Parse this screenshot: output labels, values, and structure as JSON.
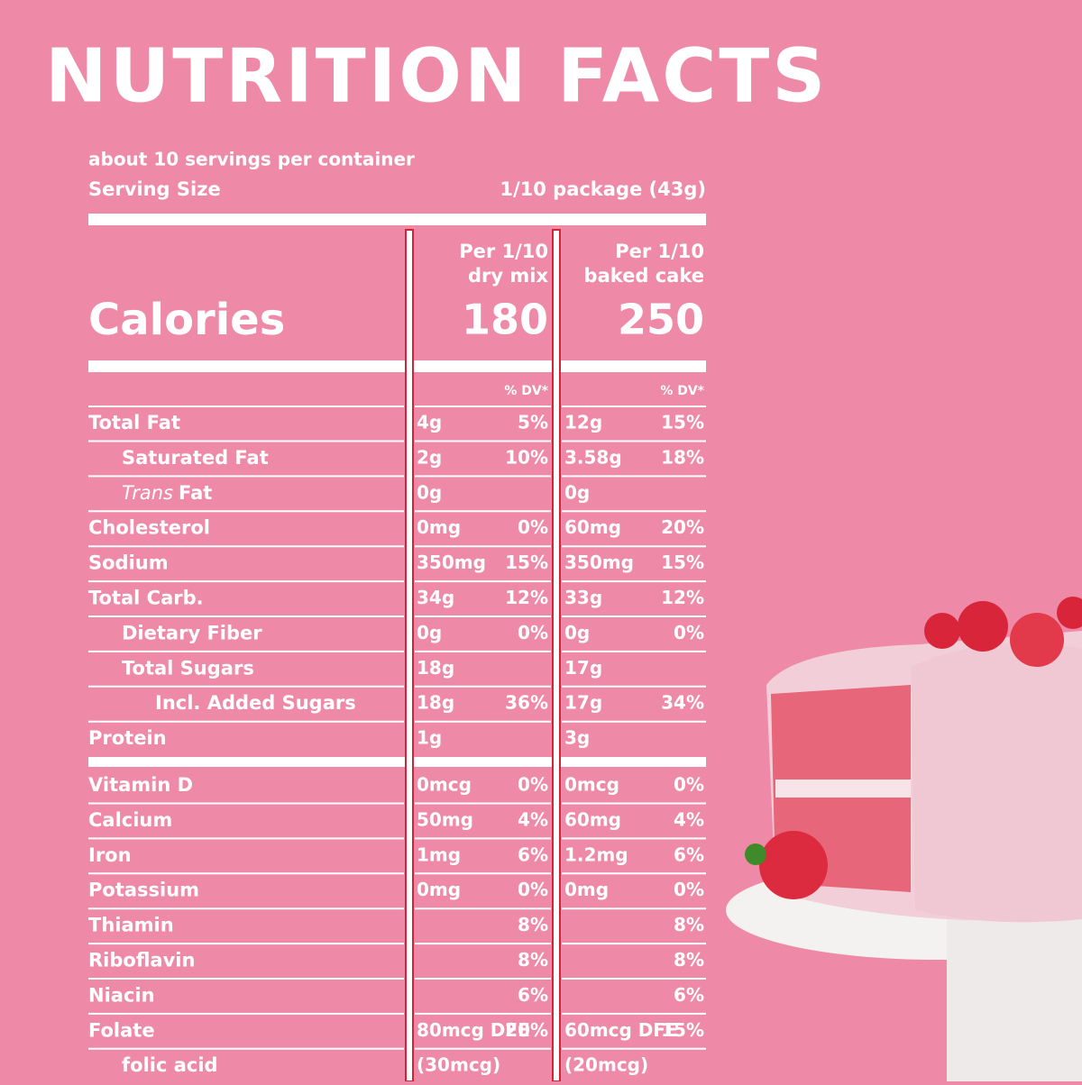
{
  "header": {
    "title": "NUTRITION FACTS",
    "servings": "about 10 servings per container",
    "serving_size_label": "Serving Size",
    "serving_size": "1/10 package (43g)"
  },
  "calories_label": "Calories",
  "columns": [
    {
      "heading": [
        "Per 1/10",
        "dry mix"
      ],
      "calories": "180",
      "dv_heading": "% DV*"
    },
    {
      "heading": [
        "Per 1/10",
        "baked cake"
      ],
      "calories": "250",
      "dv_heading": "% DV*"
    }
  ],
  "rows": [
    {
      "label": "Total Fat",
      "indent": 0,
      "cells": [
        "4g",
        "5%",
        "12g",
        "15%"
      ]
    },
    {
      "label": "Saturated Fat",
      "indent": 1,
      "cells": [
        "2g",
        "10%",
        "3.58g",
        "18%"
      ]
    },
    {
      "label_em": "Trans",
      "label": "Fat",
      "indent": 1,
      "cells": [
        "0g",
        null,
        "0g",
        null
      ]
    },
    {
      "label": "Cholesterol",
      "indent": 0,
      "cells": [
        "0mg",
        "0%",
        "60mg",
        "20%"
      ]
    },
    {
      "label": "Sodium",
      "indent": 0,
      "cells": [
        "350mg",
        "15%",
        "350mg",
        "15%"
      ]
    },
    {
      "label": "Total Carb.",
      "indent": 0,
      "cells": [
        "34g",
        "12%",
        "33g",
        "12%"
      ]
    },
    {
      "label": "Dietary Fiber",
      "indent": 1,
      "cells": [
        "0g",
        "0%",
        "0g",
        "0%"
      ]
    },
    {
      "label": "Total Sugars",
      "indent": 1,
      "cells": [
        "18g",
        null,
        "17g",
        null
      ]
    },
    {
      "label": "Incl. Added Sugars",
      "indent": 2,
      "cells": [
        "18g",
        "36%",
        "17g",
        "34%"
      ]
    },
    {
      "label": "Protein",
      "indent": 0,
      "cells": [
        "1g",
        null,
        "3g",
        null
      ]
    },
    {
      "label": "Vitamin D",
      "indent": 0,
      "cells": [
        "0mcg",
        "0%",
        "0mcg",
        "0%"
      ]
    },
    {
      "label": "Calcium",
      "indent": 0,
      "cells": [
        "50mg",
        "4%",
        "60mg",
        "4%"
      ]
    },
    {
      "label": "Iron",
      "indent": 0,
      "cells": [
        "1mg",
        "6%",
        "1.2mg",
        "6%"
      ]
    },
    {
      "label": "Potassium",
      "indent": 0,
      "cells": [
        "0mg",
        "0%",
        "0mg",
        "0%"
      ]
    },
    {
      "label": "Thiamin",
      "indent": 0,
      "cells": [
        null,
        "8%",
        null,
        "8%"
      ]
    },
    {
      "label": "Riboflavin",
      "indent": 0,
      "cells": [
        null,
        "8%",
        null,
        "8%"
      ]
    },
    {
      "label": "Niacin",
      "indent": 0,
      "cells": [
        null,
        "6%",
        null,
        "6%"
      ]
    },
    {
      "label": "Folate",
      "indent": 0,
      "cells": [
        "80mcg DFE",
        "20%",
        "60mcg DFE",
        "15%"
      ]
    },
    {
      "label": "folic acid",
      "indent": 1,
      "cells": [
        "(30mcg)",
        null,
        "(20mcg)",
        null
      ]
    }
  ]
}
